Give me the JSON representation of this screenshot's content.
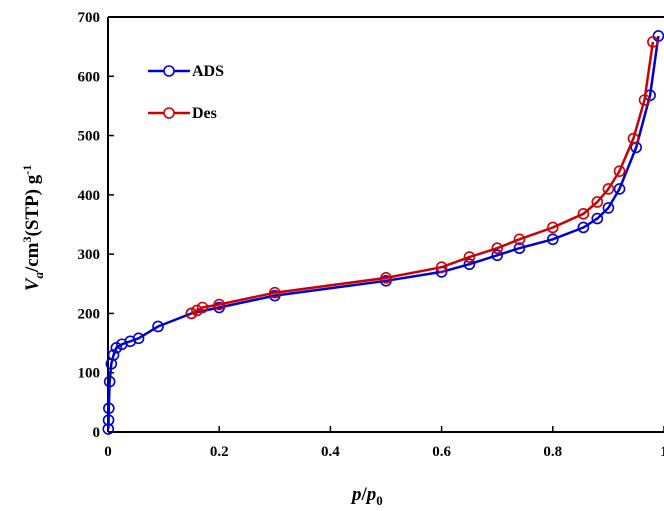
{
  "chart_data": {
    "type": "line",
    "xlim": [
      0,
      1.0
    ],
    "ylim": [
      0,
      700
    ],
    "xticks": [
      0,
      0.2,
      0.4,
      0.6,
      0.8,
      1.0
    ],
    "xtick_labels": [
      "0",
      "0.2",
      "0.4",
      "0.6",
      "0.8",
      "1"
    ],
    "yticks": [
      0,
      100,
      200,
      300,
      400,
      500,
      600,
      700
    ],
    "ytick_labels": [
      "0",
      "100",
      "200",
      "300",
      "400",
      "500",
      "600",
      "700"
    ],
    "xlabel": {
      "main": "p",
      "sep": "/",
      "second": "p",
      "sub": "0"
    },
    "ylabel": {
      "v": "V",
      "sub": "a",
      "mid": "/cm",
      "sup3": "3",
      "rest": "(STP)  g",
      "supneg": "-1"
    },
    "legend_position": "top-left",
    "grid": false,
    "series": [
      {
        "name": "ADS",
        "color": "#0000cc",
        "marker": "open-circle",
        "points": [
          [
            0.0005,
            5
          ],
          [
            0.001,
            20
          ],
          [
            0.0015,
            40
          ],
          [
            0.003,
            85
          ],
          [
            0.006,
            115
          ],
          [
            0.01,
            130
          ],
          [
            0.015,
            142
          ],
          [
            0.025,
            148
          ],
          [
            0.04,
            153
          ],
          [
            0.055,
            158
          ],
          [
            0.09,
            178
          ],
          [
            0.15,
            200
          ],
          [
            0.2,
            210
          ],
          [
            0.3,
            230
          ],
          [
            0.5,
            255
          ],
          [
            0.6,
            270
          ],
          [
            0.65,
            283
          ],
          [
            0.7,
            298
          ],
          [
            0.74,
            310
          ],
          [
            0.8,
            325
          ],
          [
            0.855,
            345
          ],
          [
            0.88,
            360
          ],
          [
            0.9,
            378
          ],
          [
            0.92,
            410
          ],
          [
            0.95,
            480
          ],
          [
            0.975,
            568
          ],
          [
            0.99,
            668
          ]
        ]
      },
      {
        "name": "Des",
        "color": "#cc0000",
        "marker": "open-circle",
        "points": [
          [
            0.15,
            200
          ],
          [
            0.16,
            205
          ],
          [
            0.17,
            210
          ],
          [
            0.2,
            215
          ],
          [
            0.3,
            235
          ],
          [
            0.5,
            260
          ],
          [
            0.6,
            278
          ],
          [
            0.65,
            295
          ],
          [
            0.7,
            310
          ],
          [
            0.74,
            325
          ],
          [
            0.8,
            345
          ],
          [
            0.855,
            368
          ],
          [
            0.88,
            388
          ],
          [
            0.9,
            410
          ],
          [
            0.92,
            440
          ],
          [
            0.945,
            495
          ],
          [
            0.965,
            560
          ],
          [
            0.98,
            658
          ]
        ]
      }
    ]
  }
}
